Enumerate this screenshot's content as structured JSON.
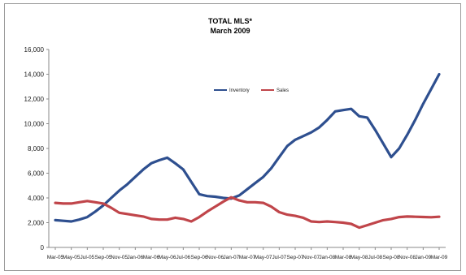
{
  "chart_data": {
    "type": "line",
    "title": "TOTAL MLS*",
    "subtitle": "March 2009",
    "xlabel": "",
    "ylabel": "",
    "ylim": [
      0,
      16000
    ],
    "y_ticks": [
      0,
      2000,
      4000,
      6000,
      8000,
      10000,
      12000,
      14000,
      16000
    ],
    "y_tick_labels": [
      "0",
      "2,000",
      "4,000",
      "6,000",
      "8,000",
      "10,000",
      "12,000",
      "14,000",
      "16,000"
    ],
    "grid": false,
    "legend_position": "upper-center",
    "x": [
      "Mar-05",
      "Apr-05",
      "May-05",
      "Jun-05",
      "Jul-05",
      "Aug-05",
      "Sep-05",
      "Oct-05",
      "Nov-05",
      "Dec-05",
      "Jan-06",
      "Feb-06",
      "Mar-06",
      "Apr-06",
      "May-06",
      "Jun-06",
      "Jul-06",
      "Aug-06",
      "Sep-06",
      "Oct-06",
      "Nov-06",
      "Dec-06",
      "Jan-07",
      "Feb-07",
      "Mar-07",
      "Apr-07",
      "May-07",
      "Jun-07",
      "Jul-07",
      "Aug-07",
      "Sep-07",
      "Oct-07",
      "Nov-07",
      "Dec-07",
      "Jan-08",
      "Feb-08",
      "Mar-08",
      "Apr-08",
      "May-08",
      "Jun-08",
      "Jul-08",
      "Aug-08",
      "Sep-08",
      "Oct-08",
      "Nov-08",
      "Dec-08",
      "Jan-09",
      "Feb-09",
      "Mar-09"
    ],
    "x_tick_labels": [
      "Mar-05",
      "May-05",
      "Jul-05",
      "Sep-05",
      "Nov-05",
      "Jan-06",
      "Mar-06",
      "May-06",
      "Jul-06",
      "Sep-06",
      "Nov-06",
      "Jan-07",
      "Mar-07",
      "May-07",
      "Jul-07",
      "Sep-07",
      "Nov-07",
      "Jan-08",
      "Mar-08",
      "May-08",
      "Jul-08",
      "Sep-08",
      "Nov-08",
      "Jan-09",
      "Mar-09"
    ],
    "series": [
      {
        "name": "Inventory",
        "color": "#2e4f8f",
        "values": [
          2200,
          2150,
          2100,
          2250,
          2450,
          2900,
          3400,
          4000,
          4600,
          5100,
          5700,
          6300,
          6800,
          7050,
          7250,
          6800,
          6300,
          5300,
          4300,
          4150,
          4100,
          4000,
          3950,
          4200,
          4700,
          5200,
          5700,
          6400,
          7300,
          8200,
          8700,
          9000,
          9300,
          9700,
          10300,
          11000,
          11100,
          11200,
          10600,
          10500,
          9500,
          8400,
          7300,
          8000,
          9100,
          10300,
          11600,
          12800,
          14000
        ]
      },
      {
        "name": "Sales",
        "color": "#c0454a",
        "values": [
          3600,
          3550,
          3550,
          3650,
          3750,
          3650,
          3550,
          3200,
          2800,
          2700,
          2600,
          2500,
          2300,
          2250,
          2250,
          2400,
          2300,
          2100,
          2450,
          2900,
          3300,
          3700,
          4050,
          3800,
          3650,
          3650,
          3600,
          3300,
          2850,
          2650,
          2550,
          2400,
          2100,
          2050,
          2100,
          2050,
          2000,
          1900,
          1600,
          1800,
          2000,
          2200,
          2300,
          2450,
          2500,
          2480,
          2460,
          2440,
          2480
        ]
      }
    ]
  }
}
